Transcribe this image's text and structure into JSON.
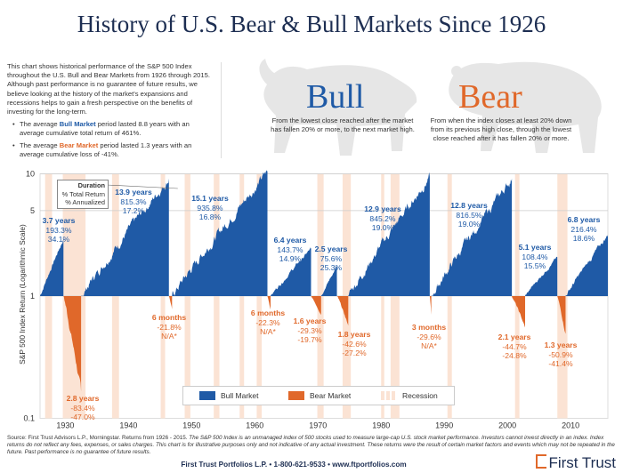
{
  "header": {
    "title": "History of U.S. Bear & Bull Markets Since 1926"
  },
  "intro": {
    "paragraph": "This chart shows historical performance of the S&P 500 Index throughout the U.S. Bull and Bear Markets from 1926 through 2015. Although past performance is no guarantee of future results, we believe looking at the history of the market's expansions and recessions helps to gain a fresh perspective on the benefits of investing for the long-term.",
    "bullets": [
      {
        "pre": "The average ",
        "kw": "Bull Market",
        "post": " period lasted 8.8 years with an average cumulative total return of 461%."
      },
      {
        "pre": "The average ",
        "kw": "Bear Market",
        "post": " period lasted 1.3 years with an average cumulative loss of -41%."
      }
    ]
  },
  "bull_panel": {
    "heading": "Bull",
    "description": "From the lowest close reached after the market has fallen 20% or more, to the next market high."
  },
  "bear_panel": {
    "heading": "Bear",
    "description": "From when the index closes at least 20% down from its previous high close, through the lowest close reached after it has fallen 20% or more."
  },
  "colors": {
    "bull": "#1f5aa6",
    "bear": "#e0682a",
    "recession": "#fbe3d4",
    "title": "#1d2e52"
  },
  "chart_data": {
    "type": "area",
    "ylabel": "S&P 500 Index Return (Logarithmic Scale)",
    "yscale": "log",
    "ylim": [
      0.1,
      10
    ],
    "yticks": [
      "0.1",
      "1",
      "5",
      "10"
    ],
    "xlim": [
      1926,
      2015.9
    ],
    "xticks": [
      "1930",
      "1940",
      "1950",
      "1960",
      "1970",
      "1980",
      "1990",
      "2000",
      "2010"
    ],
    "grid": true,
    "legend": {
      "position": "bottom",
      "items": [
        "Bull Market",
        "Bear Market",
        "Recession"
      ]
    },
    "callout": [
      "Duration",
      "% Total Return",
      "% Annualized"
    ],
    "periods": [
      {
        "type": "bull",
        "start": 1926.0,
        "end": 1929.7,
        "value": 2.933,
        "duration": "3.7 years",
        "total": "193.3%",
        "annualized": "34.1%"
      },
      {
        "type": "bear",
        "start": 1929.7,
        "end": 1932.5,
        "value": 0.166,
        "duration": "2.8 years",
        "total": "-83.4%",
        "annualized": "-47.0%"
      },
      {
        "type": "bull",
        "start": 1932.5,
        "end": 1946.4,
        "value": 9.153,
        "duration": "13.9 years",
        "total": "815.3%",
        "annualized": "17.2%"
      },
      {
        "type": "bear",
        "start": 1946.4,
        "end": 1946.9,
        "value": 0.782,
        "duration": "6 months",
        "total": "-21.8%",
        "annualized": "N/A*"
      },
      {
        "type": "bull",
        "start": 1946.9,
        "end": 1962.0,
        "value": 10.358,
        "duration": "15.1 years",
        "total": "935.8%",
        "annualized": "16.8%"
      },
      {
        "type": "bear",
        "start": 1962.0,
        "end": 1962.5,
        "value": 0.777,
        "duration": "6 months",
        "total": "-22.3%",
        "annualized": "N/A*"
      },
      {
        "type": "bull",
        "start": 1962.5,
        "end": 1968.9,
        "value": 2.437,
        "duration": "6.4 years",
        "total": "143.7%",
        "annualized": "14.9%"
      },
      {
        "type": "bear",
        "start": 1968.9,
        "end": 1970.5,
        "value": 0.707,
        "duration": "1.6 years",
        "total": "-29.3%",
        "annualized": "-19.7%"
      },
      {
        "type": "bull",
        "start": 1970.5,
        "end": 1973.0,
        "value": 1.756,
        "duration": "2.5 years",
        "total": "75.6%",
        "annualized": "25.3%"
      },
      {
        "type": "bear",
        "start": 1973.0,
        "end": 1974.8,
        "value": 0.574,
        "duration": "1.8 years",
        "total": "-42.6%",
        "annualized": "-27.2%"
      },
      {
        "type": "bull",
        "start": 1974.8,
        "end": 1987.7,
        "value": 9.452,
        "duration": "12.9 years",
        "total": "845.2%",
        "annualized": "19.0%"
      },
      {
        "type": "bear",
        "start": 1987.7,
        "end": 1987.95,
        "value": 0.704,
        "duration": "3 months",
        "total": "-29.6%",
        "annualized": "N/A*"
      },
      {
        "type": "bull",
        "start": 1987.95,
        "end": 2000.7,
        "value": 9.165,
        "duration": "12.8 years",
        "total": "816.5%",
        "annualized": "19.0%"
      },
      {
        "type": "bear",
        "start": 2000.7,
        "end": 2002.8,
        "value": 0.553,
        "duration": "2.1 years",
        "total": "-44.7%",
        "annualized": "-24.8%"
      },
      {
        "type": "bull",
        "start": 2002.8,
        "end": 2007.9,
        "value": 2.084,
        "duration": "5.1 years",
        "total": "108.4%",
        "annualized": "15.5%"
      },
      {
        "type": "bear",
        "start": 2007.9,
        "end": 2009.2,
        "value": 0.491,
        "duration": "1.3 years",
        "total": "-50.9%",
        "annualized": "-41.4%"
      },
      {
        "type": "bull",
        "start": 2009.2,
        "end": 2015.9,
        "value": 3.164,
        "duration": "6.8 years",
        "total": "216.4%",
        "annualized": "18.6%"
      }
    ],
    "recessions": [
      [
        1926.8,
        1927.9
      ],
      [
        1929.6,
        1933.2
      ],
      [
        1937.4,
        1938.5
      ],
      [
        1945.1,
        1945.8
      ],
      [
        1948.9,
        1949.8
      ],
      [
        1953.5,
        1954.4
      ],
      [
        1957.6,
        1958.3
      ],
      [
        1960.3,
        1961.1
      ],
      [
        1969.9,
        1970.9
      ],
      [
        1973.9,
        1975.2
      ],
      [
        1980.0,
        1980.5
      ],
      [
        1981.5,
        1982.9
      ],
      [
        1990.5,
        1991.2
      ],
      [
        2001.2,
        2001.9
      ],
      [
        2007.9,
        2009.5
      ]
    ]
  },
  "footer": {
    "source_plain": "Source: First Trust Advisors L.P., Morningstar. Returns from 1926 - 2015. ",
    "source_italic": "The S&P 500 Index is an unmanaged index of 500 stocks used to measure large-cap U.S. stock market performance. Investors cannot invest directly in an index. Index returns do not reflect any fees, expenses, or sales charges. This chart is for illustrative purposes only and not indicative of any actual investment. These returns were the result of certain market factors and events which may not be repeated in the future. Past performance is no guarantee of future results.",
    "contact": "First Trust Portfolios L.P. • 1-800-621-9533 • www.ftportfolios.com",
    "logo_text": "First Trust"
  }
}
